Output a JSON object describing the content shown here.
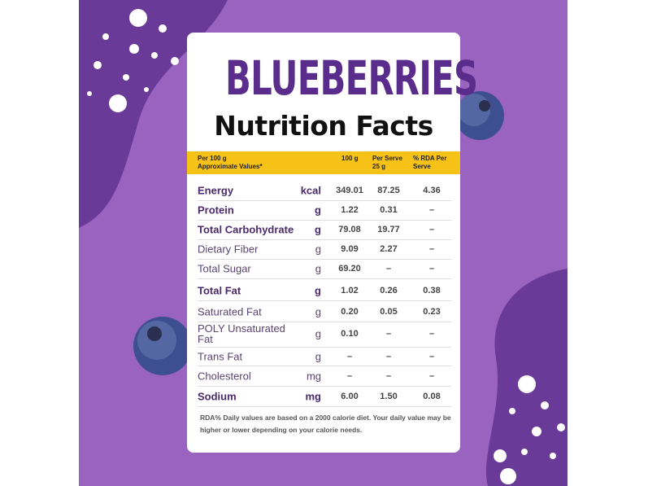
{
  "header": {
    "brand_title": "BLUEBERRIES",
    "title": "Nutrition Facts"
  },
  "table": {
    "columns": {
      "basis": "Per 100 g",
      "note": "Approximate Values*",
      "per_100g": "100 g",
      "per_serve": "Per Serve 25 g",
      "rda": "% RDA Per Serve"
    },
    "rows": [
      {
        "name": "Energy",
        "unit": "kcal",
        "per_100g": "349.01",
        "per_serve": "87.25",
        "rda": "4.36",
        "bold": true
      },
      {
        "name": "Protein",
        "unit": "g",
        "per_100g": "1.22",
        "per_serve": "0.31",
        "rda": "–",
        "bold": true
      },
      {
        "name": "Total Carbohydrate",
        "unit": "g",
        "per_100g": "79.08",
        "per_serve": "19.77",
        "rda": "–",
        "bold": true
      },
      {
        "name": "Dietary Fiber",
        "unit": "g",
        "per_100g": "9.09",
        "per_serve": "2.27",
        "rda": "–",
        "bold": false
      },
      {
        "name": "Total Sugar",
        "unit": "g",
        "per_100g": "69.20",
        "per_serve": "–",
        "rda": "–",
        "bold": false
      },
      {
        "name": "Total Fat",
        "unit": "g",
        "per_100g": "1.02",
        "per_serve": "0.26",
        "rda": "0.38",
        "bold": true
      },
      {
        "name": "Saturated Fat",
        "unit": "g",
        "per_100g": "0.20",
        "per_serve": "0.05",
        "rda": "0.23",
        "bold": false
      },
      {
        "name": "POLY Unsaturated Fat",
        "unit": "g",
        "per_100g": "0.10",
        "per_serve": "–",
        "rda": "–",
        "bold": false
      },
      {
        "name": "Trans Fat",
        "unit": "g",
        "per_100g": "–",
        "per_serve": "–",
        "rda": "–",
        "bold": false
      },
      {
        "name": "Cholesterol",
        "unit": "mg",
        "per_100g": "–",
        "per_serve": "–",
        "rda": "–",
        "bold": false
      },
      {
        "name": "Sodium",
        "unit": "mg",
        "per_100g": "6.00",
        "per_serve": "1.50",
        "rda": "0.08",
        "bold": true
      }
    ]
  },
  "footer": {
    "note": "RDA% Daily values are based on a 2000 calorie diet. Your daily value may be higher or lower depending on your calorie needs."
  }
}
